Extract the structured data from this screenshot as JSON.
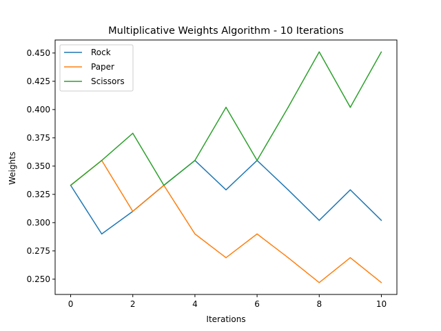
{
  "chart_data": {
    "type": "line",
    "title": "Multiplicative Weights Algorithm - 10 Iterations",
    "xlabel": "Iterations",
    "ylabel": "Weights",
    "x": [
      0,
      1,
      2,
      3,
      4,
      5,
      6,
      7,
      8,
      9,
      10
    ],
    "xlim": [
      -0.5,
      10.5
    ],
    "ylim": [
      0.2365,
      0.4615
    ],
    "xticks": [
      0,
      2,
      4,
      6,
      8,
      10
    ],
    "yticks": [
      0.25,
      0.275,
      0.3,
      0.325,
      0.35,
      0.375,
      0.4,
      0.425,
      0.45
    ],
    "xtick_labels": [
      "0",
      "2",
      "4",
      "6",
      "8",
      "10"
    ],
    "ytick_labels": [
      "0.250",
      "0.275",
      "0.300",
      "0.325",
      "0.350",
      "0.375",
      "0.400",
      "0.425",
      "0.450"
    ],
    "grid": false,
    "legend_position": "top-left",
    "series": [
      {
        "name": "Rock",
        "color": "#1f77b4",
        "values": [
          0.333,
          0.29,
          0.31,
          0.333,
          0.355,
          0.329,
          0.355,
          0.329,
          0.302,
          0.329,
          0.302
        ]
      },
      {
        "name": "Paper",
        "color": "#ff7f0e",
        "values": [
          0.333,
          0.355,
          0.31,
          0.333,
          0.29,
          0.269,
          0.29,
          0.269,
          0.247,
          0.269,
          0.247
        ]
      },
      {
        "name": "Scissors",
        "color": "#2ca02c",
        "values": [
          0.333,
          0.355,
          0.379,
          0.333,
          0.355,
          0.402,
          0.355,
          0.402,
          0.451,
          0.402,
          0.451
        ]
      }
    ]
  }
}
